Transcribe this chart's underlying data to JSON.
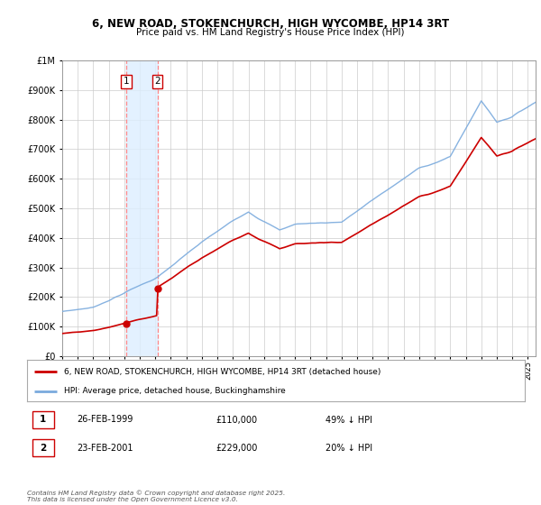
{
  "title1": "6, NEW ROAD, STOKENCHURCH, HIGH WYCOMBE, HP14 3RT",
  "title2": "Price paid vs. HM Land Registry's House Price Index (HPI)",
  "legend_line1": "6, NEW ROAD, STOKENCHURCH, HIGH WYCOMBE, HP14 3RT (detached house)",
  "legend_line2": "HPI: Average price, detached house, Buckinghamshire",
  "sale1_date": "26-FEB-1999",
  "sale1_price": 110000,
  "sale1_label": "£110,000",
  "sale1_pct": "49% ↓ HPI",
  "sale2_date": "23-FEB-2001",
  "sale2_price": 229000,
  "sale2_label": "£229,000",
  "sale2_pct": "20% ↓ HPI",
  "footer": "Contains HM Land Registry data © Crown copyright and database right 2025.\nThis data is licensed under the Open Government Licence v3.0.",
  "sale_color": "#cc0000",
  "hpi_color": "#7aaadd",
  "background": "#ffffff",
  "plot_bg": "#ffffff",
  "grid_color": "#cccccc",
  "shade_color": "#ddeeff",
  "vline_color": "#ff8888",
  "ylim": [
    0,
    1000000
  ],
  "sale1_x": 1999.13,
  "sale2_x": 2001.13
}
